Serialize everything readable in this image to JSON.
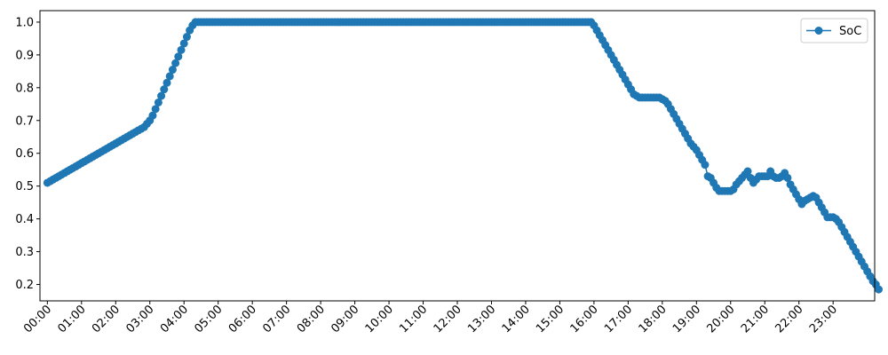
{
  "chart_data": {
    "type": "line",
    "title": "",
    "xlabel": "",
    "ylabel": "",
    "x_ticks": [
      "00:00",
      "01:00",
      "02:00",
      "03:00",
      "04:00",
      "05:00",
      "06:00",
      "07:00",
      "08:00",
      "09:00",
      "10:00",
      "11:00",
      "12:00",
      "13:00",
      "14:00",
      "15:00",
      "16:00",
      "17:00",
      "18:00",
      "19:00",
      "20:00",
      "21:00",
      "22:00",
      "23:00"
    ],
    "y_ticks": [
      "0.2",
      "0.3",
      "0.4",
      "0.5",
      "0.6",
      "0.7",
      "0.8",
      "0.9",
      "1.0"
    ],
    "xlim": [
      "-00:13",
      "24:13"
    ],
    "ylim": [
      0.15,
      1.035
    ],
    "grid": false,
    "legend": {
      "position": "top-right",
      "entries": [
        "SoC"
      ]
    },
    "series": [
      {
        "name": "SoC",
        "color": "#1f77b4",
        "marker": "circle",
        "time_step_minutes": 5,
        "start": "00:00",
        "values": [
          0.51,
          0.515,
          0.52,
          0.525,
          0.53,
          0.535,
          0.54,
          0.545,
          0.55,
          0.555,
          0.56,
          0.565,
          0.57,
          0.575,
          0.58,
          0.585,
          0.59,
          0.595,
          0.6,
          0.605,
          0.61,
          0.615,
          0.62,
          0.625,
          0.63,
          0.635,
          0.64,
          0.645,
          0.65,
          0.655,
          0.66,
          0.665,
          0.67,
          0.675,
          0.68,
          0.69,
          0.7,
          0.715,
          0.735,
          0.755,
          0.775,
          0.795,
          0.815,
          0.835,
          0.855,
          0.875,
          0.895,
          0.915,
          0.935,
          0.955,
          0.975,
          0.99,
          1.0,
          1.0,
          1.0,
          1.0,
          1.0,
          1.0,
          1.0,
          1.0,
          1.0,
          1.0,
          1.0,
          1.0,
          1.0,
          1.0,
          1.0,
          1.0,
          1.0,
          1.0,
          1.0,
          1.0,
          1.0,
          1.0,
          1.0,
          1.0,
          1.0,
          1.0,
          1.0,
          1.0,
          1.0,
          1.0,
          1.0,
          1.0,
          1.0,
          1.0,
          1.0,
          1.0,
          1.0,
          1.0,
          1.0,
          1.0,
          1.0,
          1.0,
          1.0,
          1.0,
          1.0,
          1.0,
          1.0,
          1.0,
          1.0,
          1.0,
          1.0,
          1.0,
          1.0,
          1.0,
          1.0,
          1.0,
          1.0,
          1.0,
          1.0,
          1.0,
          1.0,
          1.0,
          1.0,
          1.0,
          1.0,
          1.0,
          1.0,
          1.0,
          1.0,
          1.0,
          1.0,
          1.0,
          1.0,
          1.0,
          1.0,
          1.0,
          1.0,
          1.0,
          1.0,
          1.0,
          1.0,
          1.0,
          1.0,
          1.0,
          1.0,
          1.0,
          1.0,
          1.0,
          1.0,
          1.0,
          1.0,
          1.0,
          1.0,
          1.0,
          1.0,
          1.0,
          1.0,
          1.0,
          1.0,
          1.0,
          1.0,
          1.0,
          1.0,
          1.0,
          1.0,
          1.0,
          1.0,
          1.0,
          1.0,
          1.0,
          1.0,
          1.0,
          1.0,
          1.0,
          1.0,
          1.0,
          1.0,
          1.0,
          1.0,
          1.0,
          1.0,
          1.0,
          1.0,
          1.0,
          1.0,
          1.0,
          1.0,
          1.0,
          1.0,
          1.0,
          1.0,
          1.0,
          1.0,
          1.0,
          1.0,
          1.0,
          1.0,
          1.0,
          1.0,
          1.0,
          0.99,
          0.975,
          0.96,
          0.945,
          0.93,
          0.915,
          0.9,
          0.885,
          0.87,
          0.855,
          0.84,
          0.825,
          0.81,
          0.795,
          0.78,
          0.775,
          0.77,
          0.77,
          0.77,
          0.77,
          0.77,
          0.77,
          0.77,
          0.77,
          0.765,
          0.76,
          0.75,
          0.735,
          0.72,
          0.705,
          0.69,
          0.675,
          0.66,
          0.645,
          0.63,
          0.62,
          0.61,
          0.595,
          0.58,
          0.565,
          0.53,
          0.525,
          0.51,
          0.495,
          0.485,
          0.485,
          0.485,
          0.485,
          0.485,
          0.49,
          0.505,
          0.515,
          0.525,
          0.535,
          0.545,
          0.525,
          0.51,
          0.52,
          0.53,
          0.53,
          0.53,
          0.53,
          0.545,
          0.53,
          0.525,
          0.525,
          0.53,
          0.54,
          0.525,
          0.505,
          0.49,
          0.475,
          0.46,
          0.445,
          0.455,
          0.46,
          0.465,
          0.47,
          0.465,
          0.45,
          0.435,
          0.42,
          0.405,
          0.405,
          0.405,
          0.4,
          0.39,
          0.375,
          0.36,
          0.345,
          0.33,
          0.315,
          0.3,
          0.285,
          0.27,
          0.255,
          0.24,
          0.225,
          0.21,
          0.2,
          0.185
        ]
      }
    ]
  }
}
